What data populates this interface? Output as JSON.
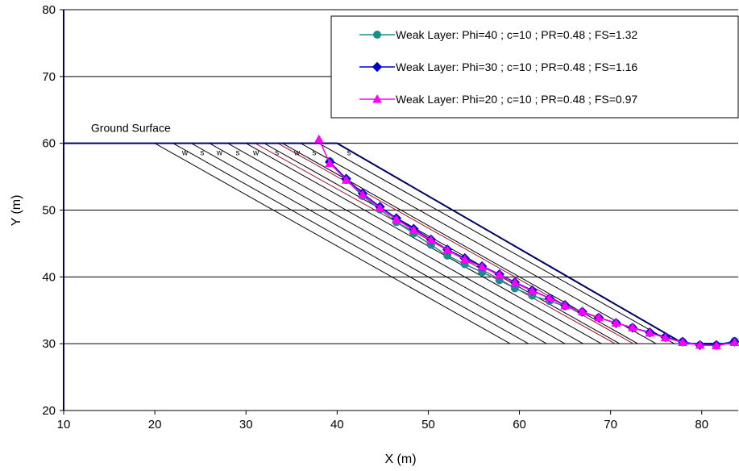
{
  "chart_data": {
    "type": "line",
    "xlabel": "X (m)",
    "ylabel": "Y (m)",
    "xlim": [
      10,
      84
    ],
    "ylim": [
      20,
      80
    ],
    "x_ticks": [
      "10",
      "20",
      "30",
      "40",
      "50",
      "60",
      "70",
      "80"
    ],
    "y_ticks": [
      "20",
      "30",
      "40",
      "50",
      "60",
      "70",
      "80"
    ],
    "grid": "horizontal",
    "legend_position": "top-right",
    "annotations": [
      {
        "text": "Ground Surface",
        "x": 13.0,
        "y": 61.7
      }
    ],
    "layer_labels": [
      {
        "text": "w",
        "x": 23.3,
        "y": 58.2
      },
      {
        "text": "s",
        "x": 25.2,
        "y": 58.2
      },
      {
        "text": "w",
        "x": 27.1,
        "y": 58.2
      },
      {
        "text": "s",
        "x": 29.1,
        "y": 58.2
      },
      {
        "text": "w",
        "x": 31.1,
        "y": 58.2
      },
      {
        "text": "s",
        "x": 33.4,
        "y": 58.2
      },
      {
        "text": "w",
        "x": 35.6,
        "y": 58.2
      },
      {
        "text": "s",
        "x": 37.5,
        "y": 58.2
      },
      {
        "text": "s",
        "x": 41.3,
        "y": 58.2
      }
    ],
    "ground_surface": [
      [
        10,
        60
      ],
      [
        40,
        60
      ],
      [
        78,
        30
      ],
      [
        84,
        30
      ]
    ],
    "layer_lines": {
      "top_y": 60,
      "bottom_y": 30,
      "x_starts": [
        20,
        22,
        24,
        26,
        28,
        30,
        32,
        34,
        36,
        38
      ],
      "x_ends": [
        59,
        61,
        63,
        65,
        67,
        69,
        71,
        73,
        75,
        77
      ]
    },
    "red_lines": [
      {
        "x_start": 31,
        "x_end": 70.5
      },
      {
        "x_start": 33.5,
        "x_end": 72.5
      }
    ],
    "series": [
      {
        "name": "Weak Layer: Phi=40 ; c=10 ; PR=0.48 ; FS=1.32",
        "color": "#1a8c8c",
        "marker": "circle",
        "points": [
          [
            39.2,
            57.3
          ],
          [
            41.0,
            54.5
          ],
          [
            42.8,
            52.1
          ],
          [
            44.7,
            50.1
          ],
          [
            46.5,
            48.2
          ],
          [
            48.4,
            46.5
          ],
          [
            50.3,
            44.8
          ],
          [
            52.1,
            43.2
          ],
          [
            54.0,
            41.9
          ],
          [
            55.9,
            40.7
          ],
          [
            57.8,
            39.5
          ],
          [
            59.5,
            38.3
          ],
          [
            61.4,
            37.2
          ],
          [
            63.3,
            36.4
          ],
          [
            65.0,
            35.6
          ],
          [
            66.9,
            34.7
          ],
          [
            68.7,
            33.9
          ],
          [
            70.6,
            33.1
          ],
          [
            72.4,
            32.4
          ],
          [
            74.3,
            31.6
          ],
          [
            76.0,
            31.0
          ],
          [
            77.9,
            30.3
          ],
          [
            79.8,
            29.8
          ],
          [
            81.6,
            29.8
          ],
          [
            83.6,
            30.4
          ]
        ]
      },
      {
        "name": "Weak Layer: Phi=30 ; c=10 ; PR=0.48 ; FS=1.16",
        "color": "#0000cc",
        "marker": "diamond",
        "points": [
          [
            39.2,
            57.2
          ],
          [
            41.0,
            54.7
          ],
          [
            42.8,
            52.5
          ],
          [
            44.7,
            50.5
          ],
          [
            46.5,
            48.8
          ],
          [
            48.4,
            47.2
          ],
          [
            50.3,
            45.6
          ],
          [
            52.1,
            44.1
          ],
          [
            54.0,
            42.8
          ],
          [
            55.9,
            41.6
          ],
          [
            57.8,
            40.4
          ],
          [
            59.5,
            39.2
          ],
          [
            61.4,
            38.0
          ],
          [
            63.3,
            36.8
          ],
          [
            65.0,
            35.8
          ],
          [
            66.9,
            34.8
          ],
          [
            68.7,
            33.9
          ],
          [
            70.6,
            33.1
          ],
          [
            72.4,
            32.4
          ],
          [
            74.3,
            31.7
          ],
          [
            76.0,
            31.0
          ],
          [
            77.9,
            30.3
          ],
          [
            79.8,
            29.8
          ],
          [
            81.6,
            29.8
          ],
          [
            83.6,
            30.3
          ]
        ]
      },
      {
        "name": "Weak Layer: Phi=20 ; c=10 ; PR=0.48 ; FS=0.97",
        "color": "#ff00ff",
        "marker": "triangle",
        "points": [
          [
            38.0,
            60.6
          ],
          [
            39.2,
            57.0
          ],
          [
            41.0,
            54.5
          ],
          [
            42.8,
            52.3
          ],
          [
            44.7,
            50.3
          ],
          [
            46.5,
            48.6
          ],
          [
            48.4,
            47.0
          ],
          [
            50.3,
            45.5
          ],
          [
            52.1,
            44.0
          ],
          [
            54.0,
            42.6
          ],
          [
            55.9,
            41.5
          ],
          [
            57.8,
            40.3
          ],
          [
            59.5,
            39.1
          ],
          [
            61.4,
            37.9
          ],
          [
            63.3,
            36.8
          ],
          [
            65.0,
            35.7
          ],
          [
            66.9,
            34.8
          ],
          [
            68.7,
            33.9
          ],
          [
            70.6,
            33.1
          ],
          [
            72.4,
            32.4
          ],
          [
            74.3,
            31.6
          ],
          [
            76.0,
            30.9
          ],
          [
            77.9,
            30.2
          ],
          [
            79.8,
            29.8
          ],
          [
            81.6,
            29.7
          ],
          [
            83.6,
            30.2
          ]
        ]
      }
    ]
  }
}
